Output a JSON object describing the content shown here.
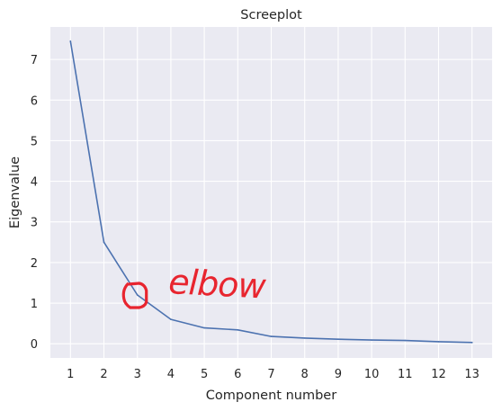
{
  "chart_data": {
    "type": "line",
    "title": "Screeplot",
    "xlabel": "Component number",
    "ylabel": "Eigenvalue",
    "x": [
      1,
      2,
      3,
      4,
      5,
      6,
      7,
      8,
      9,
      10,
      11,
      12,
      13
    ],
    "series": [
      {
        "values": [
          7.45,
          2.5,
          1.2,
          0.6,
          0.39,
          0.34,
          0.18,
          0.14,
          0.11,
          0.09,
          0.08,
          0.05,
          0.03
        ]
      }
    ],
    "xticks": [
      "1",
      "2",
      "3",
      "4",
      "5",
      "6",
      "7",
      "8",
      "9",
      "10",
      "11",
      "12",
      "13"
    ],
    "yticks": [
      "0",
      "1",
      "2",
      "3",
      "4",
      "5",
      "6",
      "7"
    ],
    "xlim": [
      0.4,
      13.6
    ],
    "ylim": [
      -0.35,
      7.8
    ],
    "grid": true,
    "background_color": "#eaeaf2",
    "line_color": "#4c72b0",
    "annotation": {
      "text": "elbow",
      "marker_at_x": 3,
      "color": "#e8252f"
    }
  }
}
